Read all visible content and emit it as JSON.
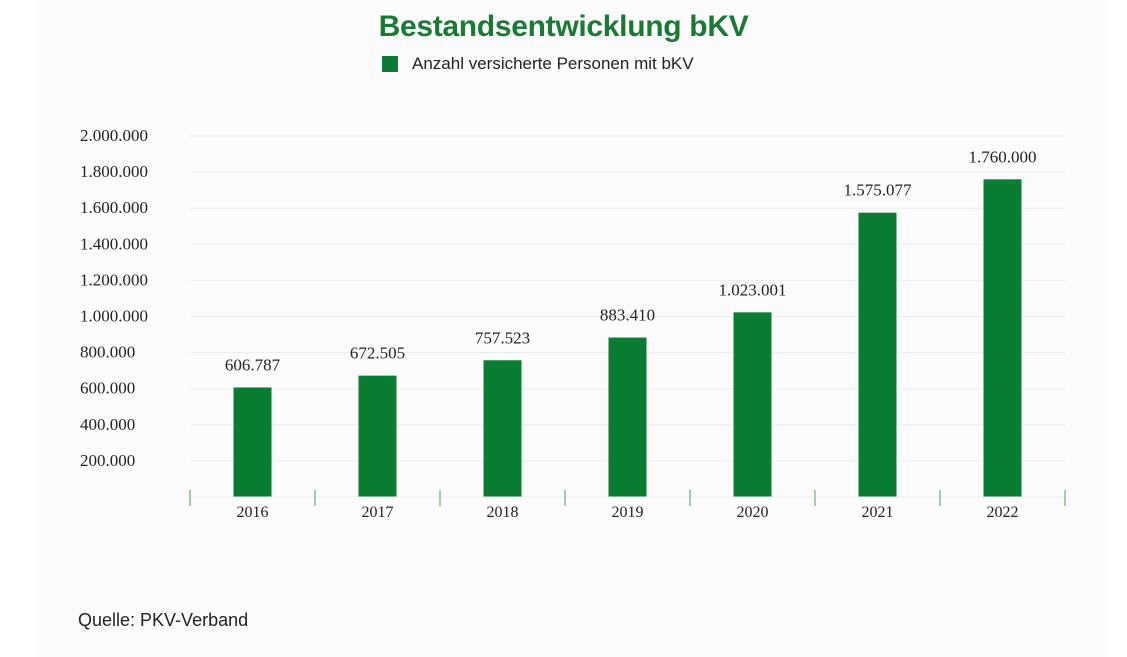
{
  "source": "Quelle: PKV-Verband",
  "colors": {
    "bar": "#0b7d33",
    "title": "#1a7a34",
    "grid": "#ececec",
    "axis_tick": "#7fc08e",
    "text": "#222222"
  },
  "chart_data": {
    "type": "bar",
    "title": "Bestandsentwicklung bKV",
    "xlabel": "",
    "ylabel": "",
    "categories": [
      "2016",
      "2017",
      "2018",
      "2019",
      "2020",
      "2021",
      "2022"
    ],
    "series": [
      {
        "name": "Anzahl versicherte Personen mit bKV",
        "values": [
          606787,
          672505,
          757523,
          883410,
          1023001,
          1575077,
          1760000
        ]
      }
    ],
    "data_labels": [
      "606.787",
      "672.505",
      "757.523",
      "883.410",
      "1.023.001",
      "1.575.077",
      "1.760.000"
    ],
    "y_ticks": [
      200000,
      400000,
      600000,
      800000,
      1000000,
      1200000,
      1400000,
      1600000,
      1800000,
      2000000
    ],
    "y_tick_labels": [
      "200.000",
      "400.000",
      "600.000",
      "800.000",
      "1.000.000",
      "1.200.000",
      "1.400.000",
      "1.600.000",
      "1.800.000",
      "2.000.000"
    ],
    "ylim": [
      0,
      2000000
    ],
    "grid": true,
    "legend_position": "top-center"
  }
}
